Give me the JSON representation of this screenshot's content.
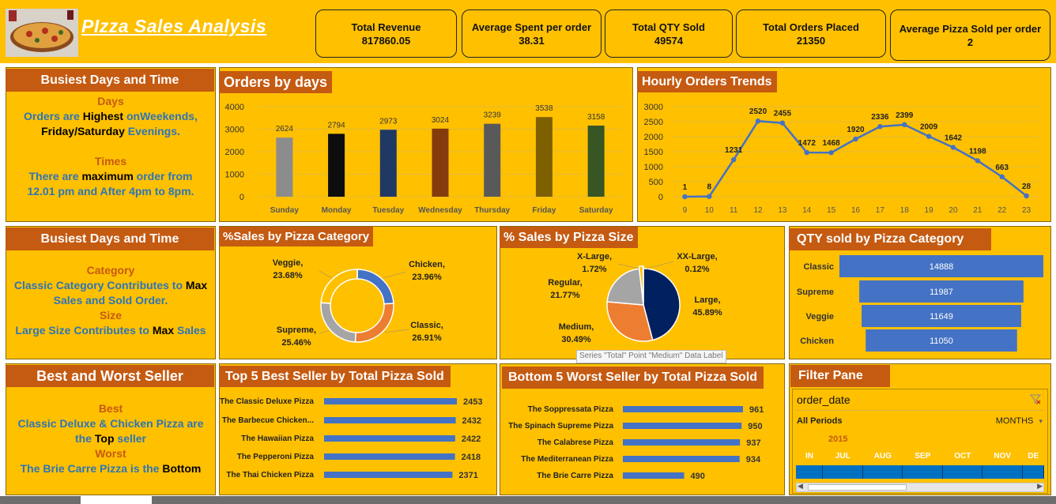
{
  "header": {
    "title": "PIzza Sales Analysis"
  },
  "kpis": [
    {
      "label": "Total Revenue",
      "value": "817860.05"
    },
    {
      "label": "Average Spent per order",
      "value": "38.31"
    },
    {
      "label": "Total QTY Sold",
      "value": "49574"
    },
    {
      "label": "Total Orders Placed",
      "value": "21350"
    },
    {
      "label": "Average Pizza Sold per order",
      "value": "2"
    }
  ],
  "insights": {
    "days_time": {
      "title": "Busiest Days and Time",
      "days_heading": "Days",
      "l1a": "Orders are ",
      "l1b": "Highest",
      "l1c": " onWeekends,",
      "l2a": "Friday/Saturday",
      "l2b": " Evenings.",
      "times_heading": "Times",
      "l3a": "There are ",
      "l3b": "maximum",
      "l3c": " order from",
      "l4a": "12.01 pm and  After 4pm to 8pm",
      "l4b": "."
    },
    "category_size": {
      "title": "Busiest Days and Time",
      "category_heading": "Category",
      "l1a": "Classic  Category Contributes to ",
      "l1b": "Max",
      "l2": "Sales and Sold Order.",
      "size_heading": "Size",
      "l3a": "Large Size Contributes to ",
      "l3b": "Max",
      "l3c": " Sales"
    },
    "best_worst": {
      "title": "Best and Worst Seller",
      "best_heading": "Best",
      "l1": "Classic  Deluxe & Chicken Pizza are",
      "l2a": "the ",
      "l2b": "Top",
      "l2c": " seller",
      "worst_heading": "Worst",
      "l3a": "The Brie Carre Pizza is the ",
      "l3b": "Bottom"
    }
  },
  "filter_pane": {
    "title": "Filter Pane",
    "field": "order_date",
    "period_label": "All Periods",
    "unit_label": "MONTHS",
    "year": "2015",
    "months": [
      "IN",
      "JUL",
      "AUG",
      "SEP",
      "OCT",
      "NOV",
      "DE"
    ],
    "colors": {
      "timeline": "#0070C0"
    }
  },
  "tooltip": {
    "text": "Series \"Total\" Point \"Medium\" Data Label"
  },
  "chart_data": [
    {
      "id": "orders_by_days",
      "type": "bar",
      "title": "Orders by days",
      "categories": [
        "Sunday",
        "Monday",
        "Tuesday",
        "Wednesday",
        "Thursday",
        "Friday",
        "Saturday"
      ],
      "values": [
        2624,
        2794,
        2973,
        3024,
        3239,
        3538,
        3158
      ],
      "yticks": [
        "0",
        "1000",
        "2000",
        "3000",
        "4000"
      ],
      "ylim": [
        0,
        4000
      ],
      "grid": true,
      "colors": [
        "#8C8C8C",
        "#0D0D0D",
        "#1F3864",
        "#843C0C",
        "#595959",
        "#7F6000",
        "#375623"
      ]
    },
    {
      "id": "hourly_orders",
      "type": "line",
      "title": "Hourly Orders Trends",
      "x": [
        "9",
        "10",
        "11",
        "12",
        "13",
        "14",
        "15",
        "16",
        "17",
        "18",
        "19",
        "20",
        "21",
        "22",
        "23"
      ],
      "values": [
        1,
        8,
        1231,
        2520,
        2455,
        1472,
        1468,
        1920,
        2336,
        2399,
        2009,
        1642,
        1198,
        663,
        28
      ],
      "yticks": [
        "0",
        "500",
        "1000",
        "1500",
        "2000",
        "2500",
        "3000"
      ],
      "ylim": [
        0,
        3000
      ],
      "grid": true,
      "colors": [
        "#4472C4"
      ]
    },
    {
      "id": "sales_by_category",
      "type": "pie",
      "title": "%Sales by Pizza Category",
      "labels": [
        "Chicken,",
        "Classic,",
        "Supreme,",
        "Veggie,"
      ],
      "values": [
        23.96,
        26.91,
        25.46,
        23.68
      ],
      "value_labels": [
        "23.96%",
        "26.91%",
        "25.46%",
        "23.68%"
      ],
      "colors": [
        "#4472C4",
        "#ED7D31",
        "#A5A5A5",
        "#FFC000"
      ]
    },
    {
      "id": "sales_by_size",
      "type": "pie",
      "title": "% Sales by Pizza Size",
      "labels": [
        "Large,",
        "Medium,",
        "Regular,",
        "X-Large,",
        "XX-Large,"
      ],
      "values": [
        45.89,
        30.49,
        21.77,
        1.72,
        0.12
      ],
      "value_labels": [
        "45.89%",
        "30.49%",
        "21.77%",
        "1.72%",
        "0.12%"
      ],
      "colors": [
        "#002060",
        "#ED7D31",
        "#A5A5A5",
        "#FFC000",
        "#4472C4"
      ]
    },
    {
      "id": "qty_by_category",
      "type": "bar",
      "title": "QTY sold by Pizza Category",
      "categories": [
        "Classic",
        "Supreme",
        "Veggie",
        "Chicken"
      ],
      "values": [
        14888,
        11987,
        11649,
        11050
      ],
      "colors": [
        "#4472C4"
      ]
    },
    {
      "id": "top5",
      "type": "bar",
      "title": "Top 5 Best Seller by Total Pizza Sold",
      "categories": [
        "The Classic Deluxe Pizza",
        "The Barbecue Chicken...",
        "The Hawaiian Pizza",
        "The Pepperoni Pizza",
        "The Thai Chicken Pizza"
      ],
      "values": [
        2453,
        2432,
        2422,
        2418,
        2371
      ],
      "colors": [
        "#4472C4"
      ]
    },
    {
      "id": "bottom5",
      "type": "bar",
      "title": "Bottom 5 Worst Seller by Total Pizza Sold",
      "categories": [
        "The Soppressata Pizza",
        "The Spinach Supreme Pizza",
        "The Calabrese Pizza",
        "The Mediterranean Pizza",
        "The Brie Carre Pizza"
      ],
      "values": [
        961,
        950,
        937,
        934,
        490
      ],
      "colors": [
        "#4472C4"
      ]
    }
  ]
}
